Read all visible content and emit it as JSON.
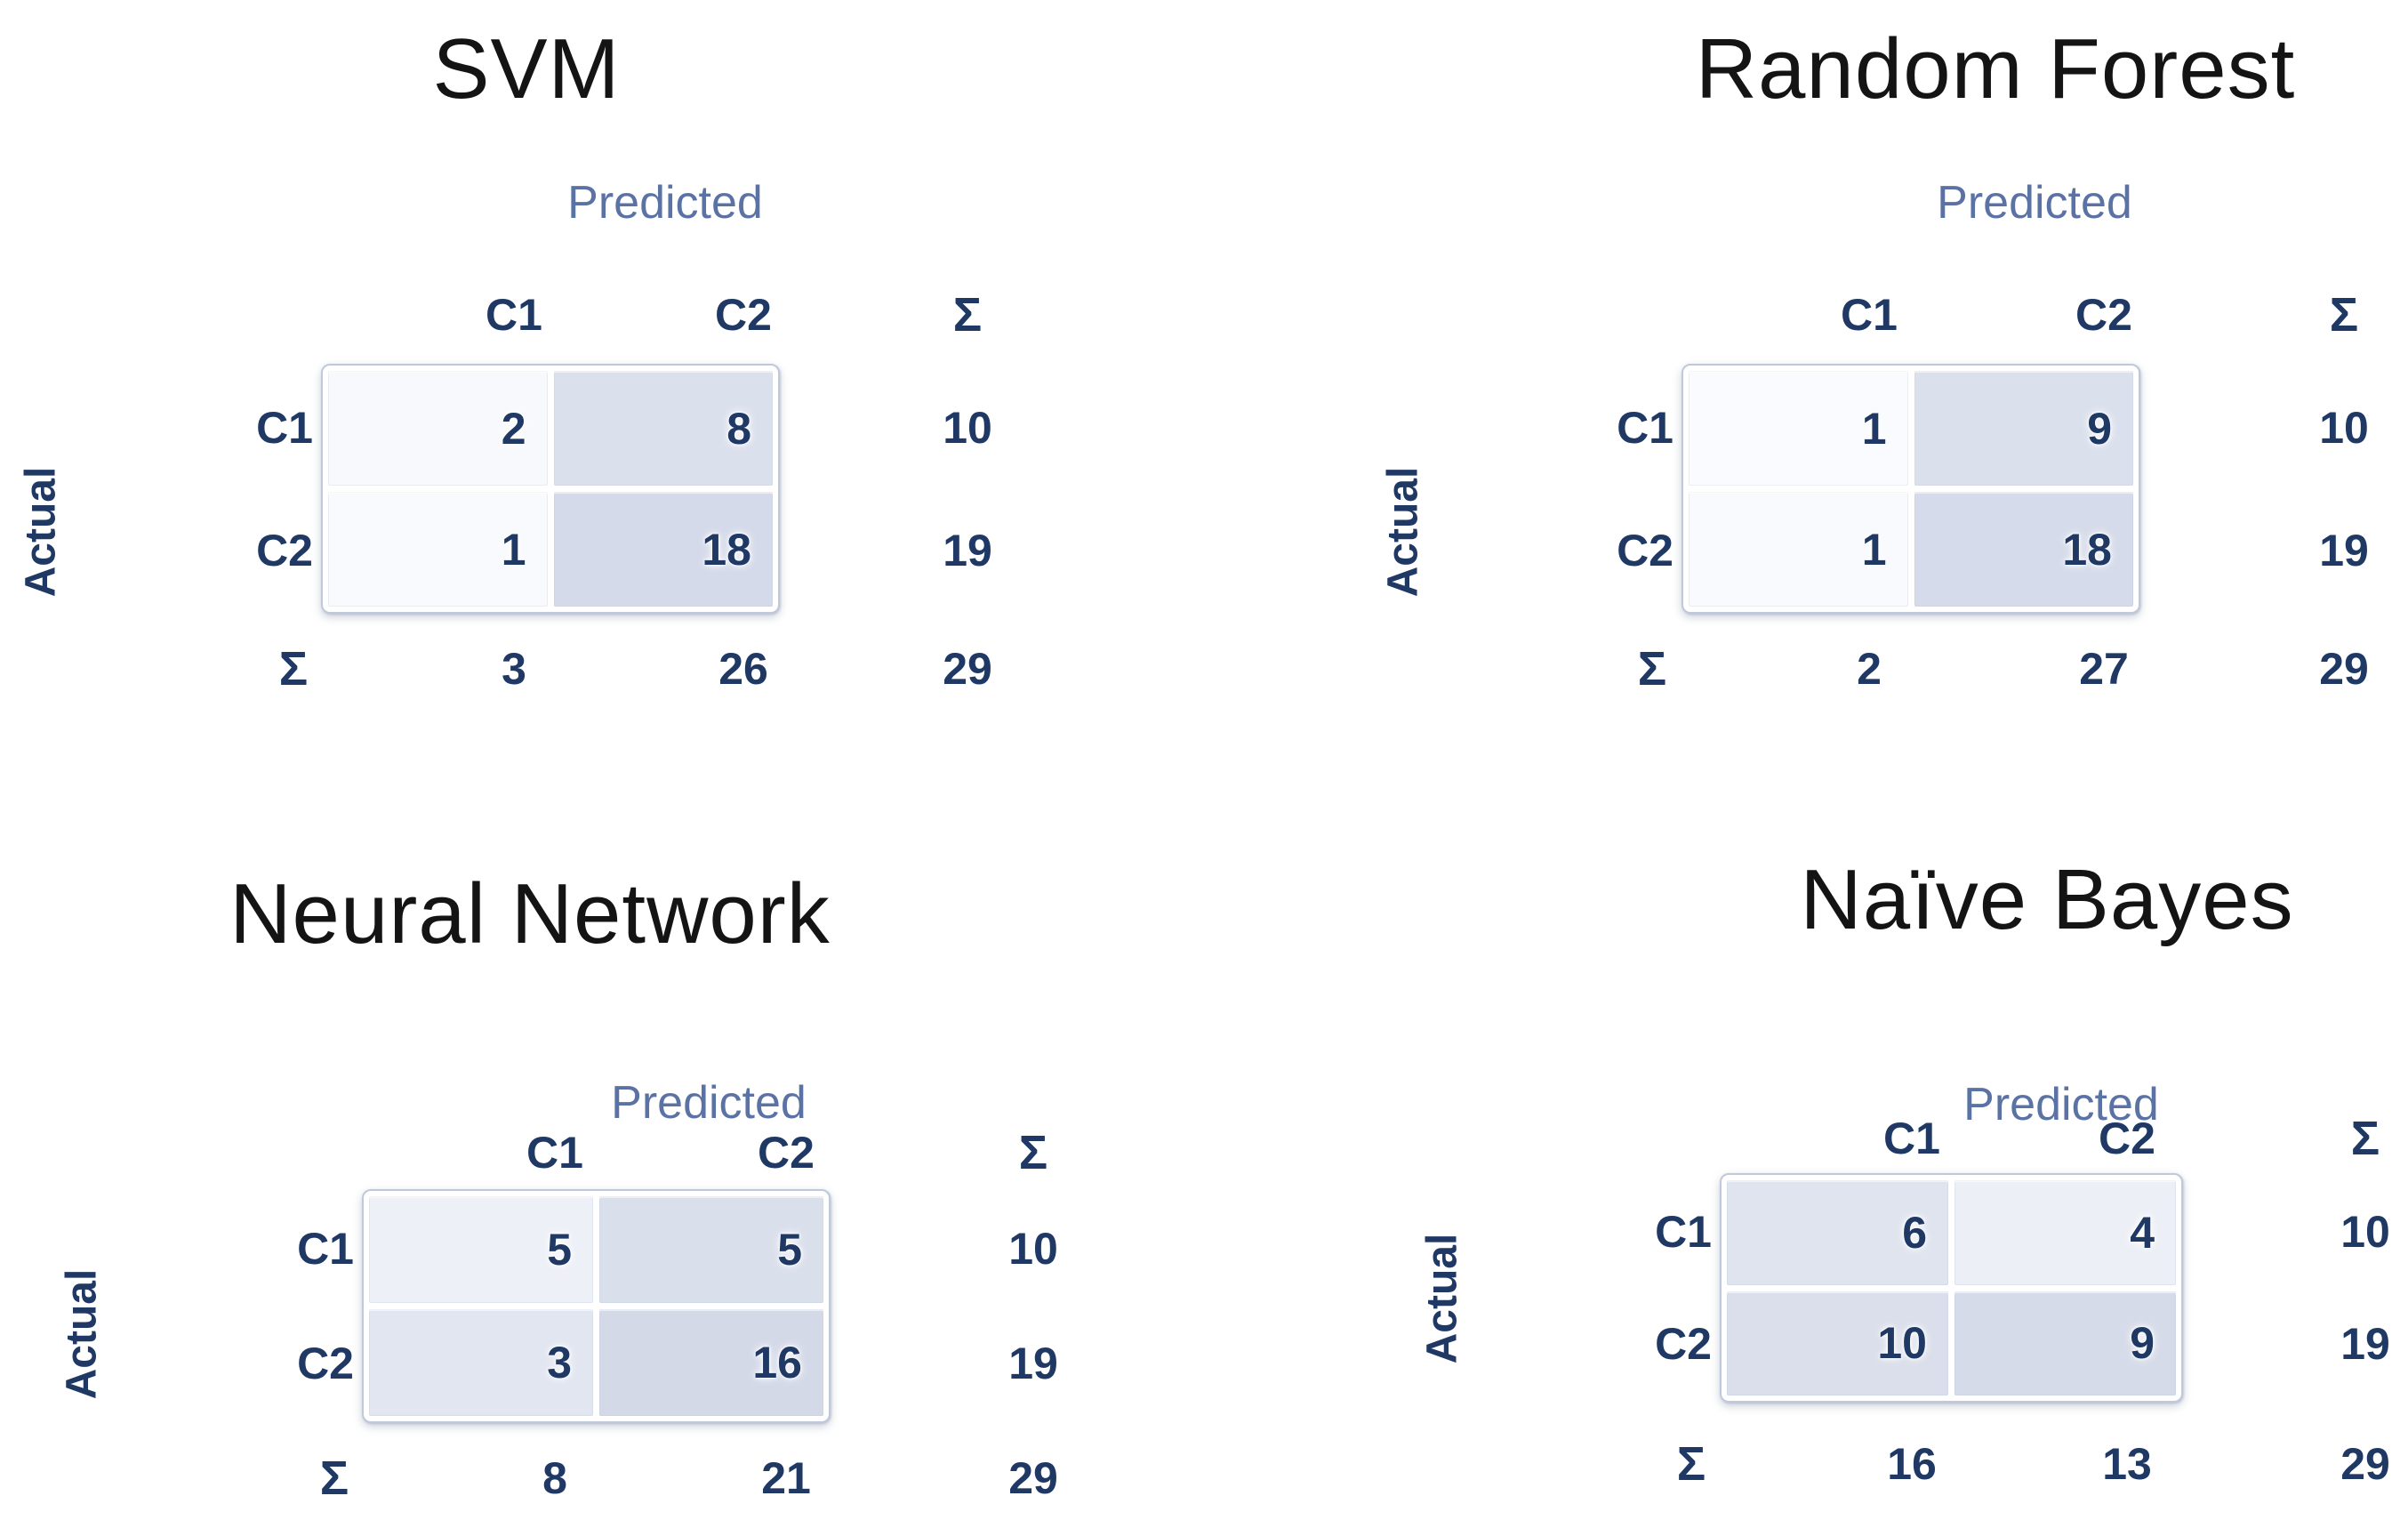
{
  "figure": {
    "background": "#ffffff",
    "labels": {
      "predicted": "Predicted",
      "actual": "Actual",
      "sum": "Σ"
    },
    "colors": {
      "title_text": "#141414",
      "predicted_text": "#5b72a5",
      "navy_text": "#1f3864",
      "matrix_border": "#c0c9db",
      "cell_gap": "#ffffff"
    }
  },
  "matrices": [
    {
      "id": "svm",
      "title": "SVM",
      "col_headers": [
        "C1",
        "C2"
      ],
      "row_headers": [
        "C1",
        "C2"
      ],
      "cells": [
        [
          "2",
          "8"
        ],
        [
          "1",
          "18"
        ]
      ],
      "row_sums": [
        "10",
        "19"
      ],
      "col_sums": [
        "3",
        "26"
      ],
      "total": "29",
      "cell_colors": [
        [
          "#f8f9fc",
          "#dbe0ed"
        ],
        [
          "#f9fafd",
          "#d4daea"
        ]
      ]
    },
    {
      "id": "rf",
      "title": "Random Forest",
      "col_headers": [
        "C1",
        "C2"
      ],
      "row_headers": [
        "C1",
        "C2"
      ],
      "cells": [
        [
          "1",
          "9"
        ],
        [
          "1",
          "18"
        ]
      ],
      "row_sums": [
        "10",
        "19"
      ],
      "col_sums": [
        "2",
        "27"
      ],
      "total": "29",
      "cell_colors": [
        [
          "#fafbfe",
          "#dbe0ed"
        ],
        [
          "#f8fafd",
          "#d5dbea"
        ]
      ]
    },
    {
      "id": "nn",
      "title": "Neural Network",
      "col_headers": [
        "C1",
        "C2"
      ],
      "row_headers": [
        "C1",
        "C2"
      ],
      "cells": [
        [
          "5",
          "5"
        ],
        [
          "3",
          "16"
        ]
      ],
      "row_sums": [
        "10",
        "19"
      ],
      "col_sums": [
        "8",
        "21"
      ],
      "total": "29",
      "cell_colors": [
        [
          "#edf0f7",
          "#dadfec"
        ],
        [
          "#e2e6f1",
          "#d4d9e8"
        ]
      ]
    },
    {
      "id": "nb",
      "title": "Naïve Bayes",
      "col_headers": [
        "C1",
        "C2"
      ],
      "row_headers": [
        "C1",
        "C2"
      ],
      "cells": [
        [
          "6",
          "4"
        ],
        [
          "10",
          "9"
        ]
      ],
      "row_sums": [
        "10",
        "19"
      ],
      "col_sums": [
        "16",
        "13"
      ],
      "total": "29",
      "cell_colors": [
        [
          "#dfe4ef",
          "#ecf0f6"
        ],
        [
          "#dadfeb",
          "#d6dbe9"
        ]
      ]
    }
  ],
  "chart_data": [
    {
      "type": "heatmap",
      "title": "SVM",
      "xlabel": "Predicted",
      "ylabel": "Actual",
      "categories": [
        "C1",
        "C2"
      ],
      "matrix": [
        [
          2,
          8
        ],
        [
          1,
          18
        ]
      ],
      "row_sums": [
        10,
        19
      ],
      "col_sums": [
        3,
        26
      ],
      "total": 29
    },
    {
      "type": "heatmap",
      "title": "Random Forest",
      "xlabel": "Predicted",
      "ylabel": "Actual",
      "categories": [
        "C1",
        "C2"
      ],
      "matrix": [
        [
          1,
          9
        ],
        [
          1,
          18
        ]
      ],
      "row_sums": [
        10,
        19
      ],
      "col_sums": [
        2,
        27
      ],
      "total": 29
    },
    {
      "type": "heatmap",
      "title": "Neural Network",
      "xlabel": "Predicted",
      "ylabel": "Actual",
      "categories": [
        "C1",
        "C2"
      ],
      "matrix": [
        [
          5,
          5
        ],
        [
          3,
          16
        ]
      ],
      "row_sums": [
        10,
        19
      ],
      "col_sums": [
        8,
        21
      ],
      "total": 29
    },
    {
      "type": "heatmap",
      "title": "Naïve Bayes",
      "xlabel": "Predicted",
      "ylabel": "Actual",
      "categories": [
        "C1",
        "C2"
      ],
      "matrix": [
        [
          6,
          4
        ],
        [
          10,
          9
        ]
      ],
      "row_sums": [
        10,
        19
      ],
      "col_sums": [
        16,
        13
      ],
      "total": 29
    }
  ]
}
